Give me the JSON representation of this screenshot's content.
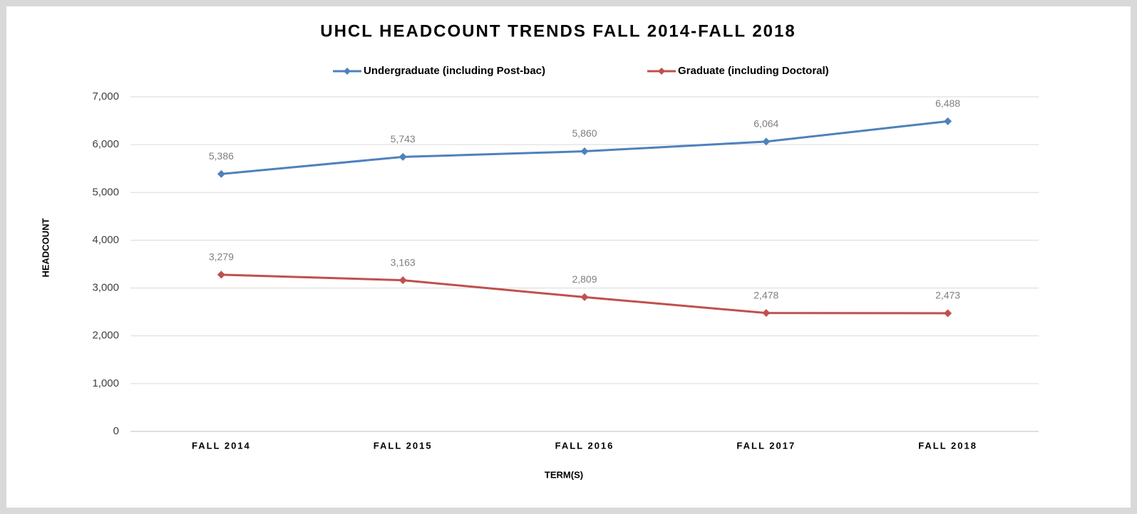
{
  "chart_data": {
    "type": "line",
    "title": "UHCL HEADCOUNT TRENDS FALL 2014-FALL 2018",
    "x_label": "TERM(S)",
    "y_label": "HEADCOUNT",
    "categories": [
      "FALL 2014",
      "FALL 2015",
      "FALL 2016",
      "FALL 2017",
      "FALL 2018"
    ],
    "series": [
      {
        "name": "Undergraduate (including Post-bac)",
        "color": "#4f81bd",
        "values": [
          5386,
          5743,
          5860,
          6064,
          6488
        ],
        "value_labels": [
          "5,386",
          "5,743",
          "5,860",
          "6,064",
          "6,488"
        ]
      },
      {
        "name": "Graduate (including Doctoral)",
        "color": "#c0504d",
        "values": [
          3279,
          3163,
          2809,
          2478,
          2473
        ],
        "value_labels": [
          "3,279",
          "3,163",
          "2,809",
          "2,478",
          "2,473"
        ]
      }
    ],
    "ylim": [
      0,
      7000
    ],
    "yticks": [
      0,
      {
        "value": 1000,
        "label": "1,000"
      },
      {
        "value": 2000,
        "label": "2,000"
      },
      {
        "value": 3000,
        "label": "3,000"
      },
      {
        "value": 4000,
        "label": "4,000"
      },
      {
        "value": 5000,
        "label": "5,000"
      },
      {
        "value": 6000,
        "label": "6,000"
      },
      {
        "value": 7000,
        "label": "7,000"
      }
    ],
    "grid": true,
    "legend": "top"
  }
}
